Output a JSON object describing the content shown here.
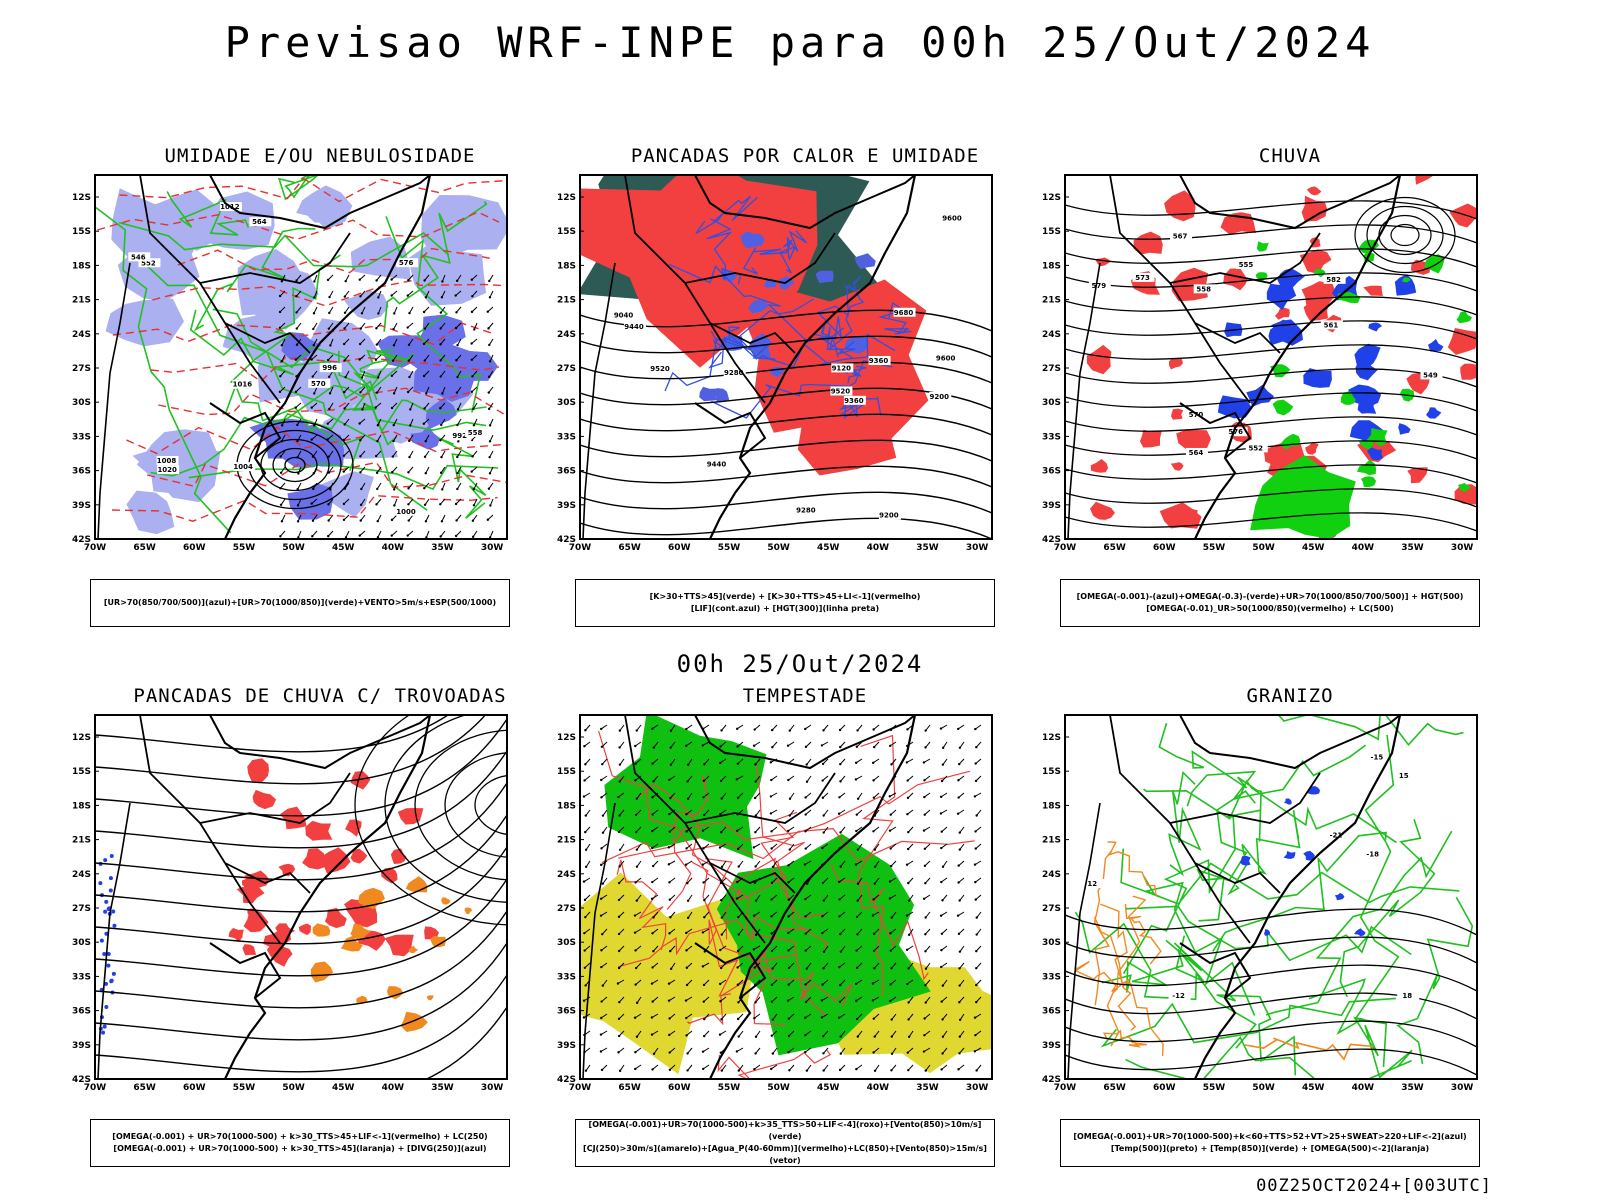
{
  "header": {
    "title": "Previsao WRF-INPE  para 00h 25/Out/2024"
  },
  "middle": {
    "date": "00h 25/Out/2024"
  },
  "footer": {
    "stamp": "00Z25OCT2024+[003UTC]"
  },
  "axes": {
    "lat_labels": [
      "12S",
      "15S",
      "18S",
      "21S",
      "24S",
      "27S",
      "30S",
      "33S",
      "36S",
      "39S",
      "42S"
    ],
    "lon_labels": [
      "70W",
      "65W",
      "60W",
      "55W",
      "50W",
      "45W",
      "40W",
      "35W",
      "30W"
    ]
  },
  "panels": [
    {
      "title": "UMIDADE E/OU NEBULOSIDADE",
      "legend": [
        "[UR>70(850/700/500)](azul)+[UR>70(1000/850)](verde)+VENTO>5m/s+ESP(500/1000)"
      ],
      "contour_labels": [
        "1008",
        "1012",
        "1016",
        "1020",
        "1004",
        "1000",
        "996",
        "992",
        "570",
        "576",
        "564",
        "558",
        "552",
        "546"
      ],
      "colors": {
        "fill": "#aab0f0",
        "fill2": "#6a70e8",
        "line1": "#22c022",
        "line2": "#e83030"
      }
    },
    {
      "title": "PANCADAS POR CALOR E UMIDADE",
      "legend": [
        "[K>30+TTS>45](verde) + [K>30+TTS>45+LI<-1](vermelho)",
        "[LIF](cont.azul) + [HGT(300)](linha preta)"
      ],
      "contour_labels": [
        "9680",
        "9600",
        "9520",
        "9440",
        "9360",
        "9280",
        "9200",
        "9120",
        "9040",
        "9600",
        "9520",
        "9440",
        "9360",
        "9280",
        "9200"
      ],
      "colors": {
        "fill": "#2e5a55",
        "fill2": "#f24040",
        "line1": "#3050e0",
        "line2": "#000000"
      }
    },
    {
      "title": "CHUVA",
      "legend": [
        "[OMEGA(-0.001)-(azul)+OMEGA(-0.3)-(verde)+UR>70(1000/850/700/500)] + HGT(500)",
        "[OMEGA(-0.01)_UR>50(1000/850)(vermelho) + LC(500)"
      ],
      "contour_labels": [
        "582",
        "579",
        "576",
        "573",
        "570",
        "567",
        "564",
        "561",
        "558",
        "555",
        "552",
        "549"
      ],
      "colors": {
        "fill": "#f24040",
        "fill2": "#2040e8",
        "line1": "#10d010",
        "line2": "#000000"
      }
    },
    {
      "title": "PANCADAS DE CHUVA C/ TROVOADAS",
      "legend": [
        "[OMEGA(-0.001) + UR>70(1000-500) + k>30_TTS>45+LIF<-1](vermelho) + LC(250)",
        "[OMEGA(-0.001) + UR>70(1000-500) + k>30_TTS>45](laranja) + [DIVG(250)](azul)"
      ],
      "contour_labels": [],
      "colors": {
        "fill": "#f24040",
        "fill2": "#f08a20",
        "line1": "#2040e8",
        "line2": "#000000"
      }
    },
    {
      "title": "TEMPESTADE",
      "legend": [
        "[OMEGA(-0.001)+UR>70(1000-500)+k>35_TTS>50+LIF<-4](roxo)+[Vento(850)>10m/s](verde)",
        "[CJ(250)>30m/s](amarelo)+[Agua_P(40-60mm)](vermelho)+LC(850)+[Vento(850)>15m/s](vetor)"
      ],
      "contour_labels": [],
      "colors": {
        "fill": "#e0d830",
        "fill2": "#10c010",
        "line1": "#f04040",
        "line2": "#000000"
      }
    },
    {
      "title": "GRANIZO",
      "legend": [
        "[OMEGA(-0.001)+UR>70(1000-500)+k<60+TTS>52+VT>25+SWEAT>220+LIF<-2](azul)",
        "[Temp(500)](preto) + [Temp(850)](verde) + [OMEGA(500)<-2](laranja)"
      ],
      "contour_labels": [
        "-12",
        "-15",
        "-18",
        "-21",
        "12",
        "15",
        "18"
      ],
      "colors": {
        "fill": "#f08a20",
        "fill2": "#2040e8",
        "line1": "#20c020",
        "line2": "#000000"
      }
    }
  ]
}
